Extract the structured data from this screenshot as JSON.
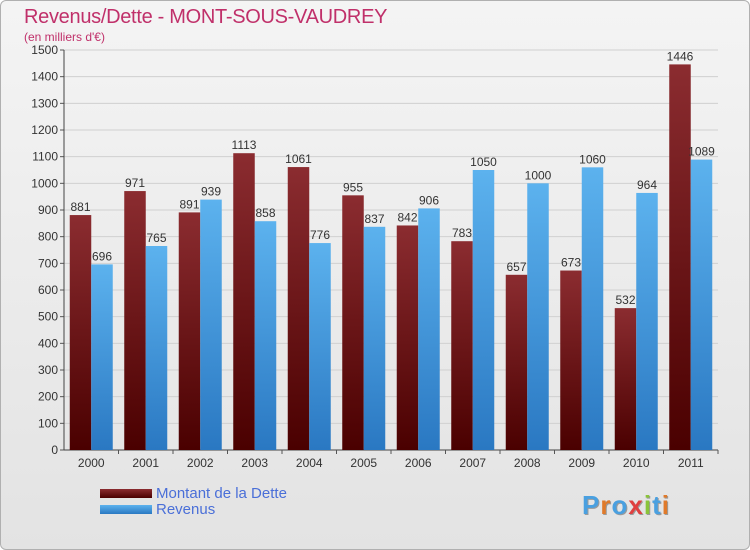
{
  "title": "Revenus/Dette - MONT-SOUS-VAUDREY",
  "subtitle": "(en milliers d'€)",
  "logo": {
    "text": "Proxiti",
    "colors": [
      "#4aa0e0",
      "#e07a2a",
      "#4aa0e0",
      "#e04040",
      "#8ac43a",
      "#4aa0e0",
      "#e07a2a"
    ]
  },
  "legend": [
    {
      "label": "Montant de la Dette",
      "color": "#6e1a1a"
    },
    {
      "label": "Revenus",
      "color": "#3f9ee0"
    }
  ],
  "chart_data": {
    "type": "bar",
    "categories": [
      "2000",
      "2001",
      "2002",
      "2003",
      "2004",
      "2005",
      "2006",
      "2007",
      "2008",
      "2009",
      "2010",
      "2011"
    ],
    "series": [
      {
        "name": "Montant de la Dette",
        "values": [
          881,
          971,
          891,
          1113,
          1061,
          955,
          842,
          783,
          657,
          673,
          532,
          1446
        ],
        "color": "#7a1f22"
      },
      {
        "name": "Revenus",
        "values": [
          696,
          765,
          939,
          858,
          776,
          837,
          906,
          1050,
          1000,
          1060,
          964,
          1089
        ],
        "color": "#4aa3e6"
      }
    ],
    "ylim": [
      0,
      1500
    ],
    "yticks": [
      0,
      100,
      200,
      300,
      400,
      500,
      600,
      700,
      800,
      900,
      1000,
      1100,
      1200,
      1300,
      1400,
      1500
    ],
    "grid": true,
    "legend_position": "bottom-left"
  }
}
